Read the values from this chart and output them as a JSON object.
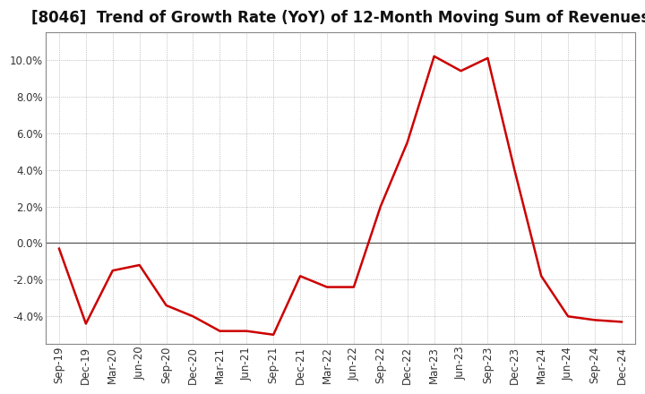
{
  "title": "[8046]  Trend of Growth Rate (YoY) of 12-Month Moving Sum of Revenues",
  "line_color": "#cc0000",
  "background_color": "#ffffff",
  "plot_bg_color": "#ffffff",
  "grid_color": "#999999",
  "zero_line_color": "#555555",
  "x_labels": [
    "Sep-19",
    "Dec-19",
    "Mar-20",
    "Jun-20",
    "Sep-20",
    "Dec-20",
    "Mar-21",
    "Jun-21",
    "Sep-21",
    "Dec-21",
    "Mar-22",
    "Jun-22",
    "Sep-22",
    "Dec-22",
    "Mar-23",
    "Jun-23",
    "Sep-23",
    "Dec-23",
    "Mar-24",
    "Jun-24",
    "Sep-24",
    "Dec-24"
  ],
  "y_values": [
    -0.003,
    -0.044,
    -0.015,
    -0.012,
    -0.034,
    -0.04,
    -0.048,
    -0.048,
    -0.05,
    -0.018,
    -0.024,
    -0.024,
    0.02,
    0.055,
    0.102,
    0.094,
    0.101,
    0.04,
    -0.018,
    -0.04,
    -0.042,
    -0.043
  ],
  "ylim": [
    -0.055,
    0.115
  ],
  "yticks": [
    -0.04,
    -0.02,
    0.0,
    0.02,
    0.04,
    0.06,
    0.08,
    0.1
  ],
  "title_fontsize": 12,
  "tick_fontsize": 8.5,
  "line_width": 1.8
}
